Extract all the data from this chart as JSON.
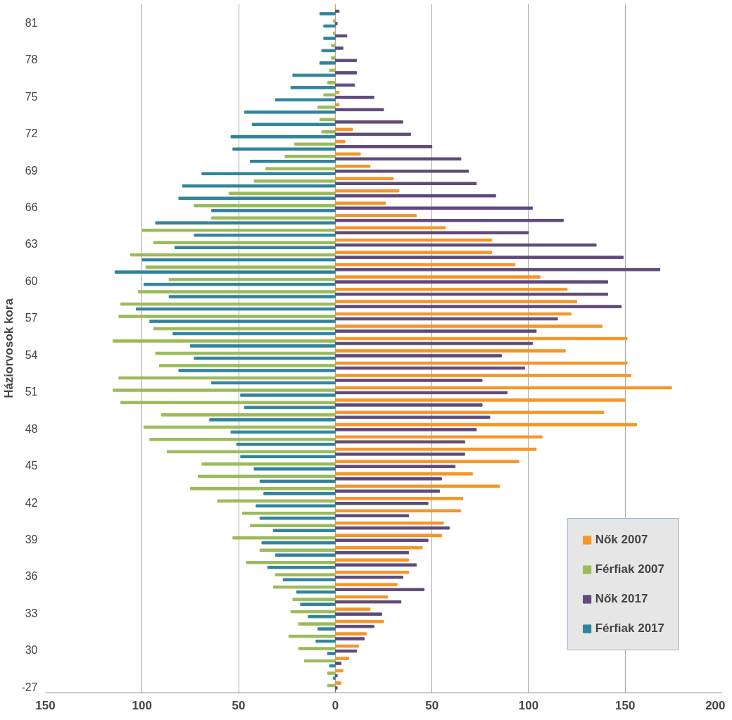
{
  "chart_data": {
    "type": "bar",
    "orientation": "horizontal",
    "ylabel": "Háziorvosok kora",
    "categories": [
      null,
      "81",
      null,
      null,
      "78",
      null,
      null,
      "75",
      null,
      null,
      "72",
      null,
      null,
      "69",
      null,
      null,
      "66",
      null,
      null,
      "63",
      null,
      null,
      "60",
      null,
      null,
      "57",
      null,
      null,
      "54",
      null,
      null,
      "51",
      null,
      null,
      "48",
      null,
      null,
      "45",
      null,
      null,
      "42",
      null,
      null,
      "39",
      null,
      null,
      "36",
      null,
      null,
      "33",
      null,
      null,
      "30",
      null,
      null,
      "-27"
    ],
    "series": [
      {
        "name": "Nők 2007",
        "color": "#f79428",
        "values": [
          0,
          0,
          0,
          0,
          0,
          0,
          0,
          2,
          2,
          0,
          9,
          5,
          13,
          18,
          30,
          33,
          26,
          42,
          57,
          81,
          81,
          93,
          106,
          120,
          125,
          122,
          138,
          151,
          119,
          151,
          153,
          174,
          150,
          139,
          156,
          107,
          104,
          95,
          71,
          85,
          66,
          65,
          56,
          55,
          45,
          38,
          38,
          32,
          27,
          18,
          25,
          16,
          12,
          7,
          4,
          3
        ]
      },
      {
        "name": "Férfiak 2007",
        "color": "#9bbb59",
        "values": [
          0,
          -1,
          -1,
          -2,
          -2,
          -3,
          -4,
          -6,
          -9,
          -8,
          -7,
          -21,
          -26,
          -36,
          -42,
          -55,
          -73,
          -64,
          -100,
          -94,
          -106,
          -98,
          -86,
          -102,
          -111,
          -112,
          -94,
          -115,
          -93,
          -91,
          -112,
          -115,
          -111,
          -90,
          -99,
          -96,
          -87,
          -69,
          -71,
          -75,
          -61,
          -48,
          -44,
          -53,
          -39,
          -46,
          -31,
          -32,
          -22,
          -23,
          -19,
          -24,
          -19,
          -16,
          -4,
          -4
        ]
      },
      {
        "name": "Nők 2017",
        "color": "#604a7b",
        "values": [
          2,
          1,
          6,
          4,
          11,
          11,
          10,
          20,
          25,
          35,
          39,
          50,
          65,
          69,
          73,
          83,
          102,
          118,
          100,
          135,
          149,
          168,
          141,
          141,
          148,
          115,
          104,
          102,
          86,
          98,
          76,
          89,
          76,
          80,
          73,
          67,
          67,
          62,
          55,
          54,
          48,
          38,
          59,
          48,
          38,
          42,
          35,
          46,
          34,
          24,
          20,
          15,
          11,
          3,
          1,
          1
        ]
      },
      {
        "name": "Férfiak 2017",
        "color": "#31849b",
        "values": [
          -8,
          -6,
          -6,
          -7,
          -8,
          -22,
          -23,
          -31,
          -47,
          -43,
          -54,
          -53,
          -44,
          -69,
          -79,
          -81,
          -64,
          -93,
          -73,
          -83,
          -100,
          -114,
          -99,
          -86,
          -103,
          -96,
          -84,
          -75,
          -73,
          -81,
          -64,
          -49,
          -47,
          -65,
          -54,
          -51,
          -49,
          -42,
          -39,
          -37,
          -41,
          -39,
          -32,
          -38,
          -31,
          -35,
          -27,
          -20,
          -18,
          -14,
          -9,
          -10,
          -4,
          -3,
          -1,
          0
        ]
      }
    ],
    "xlim": [
      -150,
      200
    ],
    "xticks": [
      {
        "value": -150,
        "label": "150"
      },
      {
        "value": -100,
        "label": "100"
      },
      {
        "value": -50,
        "label": "50"
      },
      0,
      50,
      100,
      150,
      200
    ],
    "grid": "x",
    "legend": "bottom right"
  }
}
